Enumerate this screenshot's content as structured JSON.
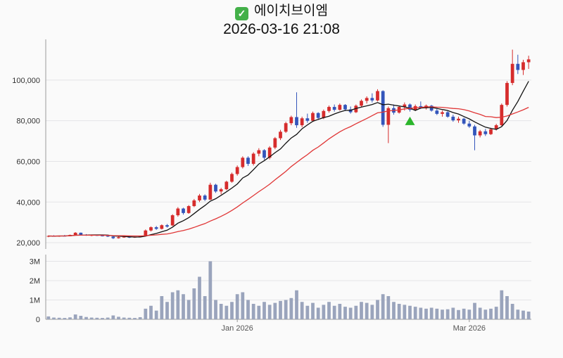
{
  "header": {
    "check_glyph": "✓",
    "title": "에이치브이엠",
    "datetime": "2026-03-16 21:08"
  },
  "colors": {
    "up": "#d62c2c",
    "down": "#3355bb",
    "volume": "#9aa4bc",
    "ma_fast": "#111111",
    "ma_slow": "#e03636",
    "grid": "#e4e4e7",
    "axis": "#999999",
    "checkbox_green": "#43b049"
  },
  "chart_data": {
    "type": "candlestick",
    "title": "에이치브이엠",
    "subtitle": "2026-03-16 21:08",
    "panels": [
      "price",
      "volume"
    ],
    "price_axis": {
      "ticks": [
        20000,
        40000,
        60000,
        80000,
        100000
      ],
      "range": [
        16900,
        119000
      ]
    },
    "volume_axis": {
      "ticks": [
        {
          "v": 0,
          "label": "0"
        },
        {
          "v": 1000000,
          "label": "1M"
        },
        {
          "v": 2000000,
          "label": "2M"
        },
        {
          "v": 3000000,
          "label": "3M"
        }
      ],
      "max": 3200000
    },
    "x_axis_labels": [
      {
        "index": 35,
        "label": "Jan 2026"
      },
      {
        "index": 78,
        "label": "Mar 2026"
      }
    ],
    "moving_averages": [
      {
        "period": 7,
        "color_key": "ma_fast"
      },
      {
        "period": 20,
        "color_key": "ma_slow"
      }
    ],
    "marker": {
      "shape": "triangle-up",
      "index": 67,
      "price": 82000,
      "color": "#2bb52b"
    },
    "columns": [
      "open",
      "high",
      "low",
      "close",
      "volume"
    ],
    "candles": [
      [
        23000,
        23600,
        22700,
        23300,
        150000
      ],
      [
        23300,
        23700,
        23000,
        23200,
        90000
      ],
      [
        23200,
        23500,
        22900,
        23400,
        80000
      ],
      [
        23400,
        23800,
        23100,
        23300,
        70000
      ],
      [
        23300,
        24000,
        23200,
        23800,
        100000
      ],
      [
        23800,
        25200,
        23700,
        24900,
        250000
      ],
      [
        24900,
        25000,
        23600,
        23900,
        180000
      ],
      [
        23900,
        24200,
        23400,
        23600,
        120000
      ],
      [
        23600,
        23900,
        23200,
        23750,
        90000
      ],
      [
        23750,
        24000,
        23300,
        23500,
        80000
      ],
      [
        23500,
        23800,
        23100,
        23400,
        70000
      ],
      [
        23400,
        23600,
        22800,
        23000,
        90000
      ],
      [
        23000,
        23200,
        21800,
        22200,
        200000
      ],
      [
        22200,
        22900,
        22000,
        22700,
        130000
      ],
      [
        22700,
        23100,
        22400,
        22900,
        90000
      ],
      [
        22900,
        23000,
        22300,
        22500,
        80000
      ],
      [
        22500,
        23000,
        22400,
        22900,
        70000
      ],
      [
        22900,
        23400,
        22700,
        23200,
        110000
      ],
      [
        23200,
        26500,
        23100,
        26000,
        550000
      ],
      [
        26000,
        28000,
        25500,
        27600,
        700000
      ],
      [
        27600,
        28200,
        26300,
        26800,
        450000
      ],
      [
        26800,
        29000,
        26500,
        28600,
        1200000
      ],
      [
        28600,
        29200,
        27400,
        27900,
        900000
      ],
      [
        28500,
        34000,
        28200,
        33500,
        1400000
      ],
      [
        33500,
        37500,
        32800,
        36800,
        1500000
      ],
      [
        36800,
        37200,
        33800,
        34600,
        1300000
      ],
      [
        34600,
        38500,
        34200,
        38000,
        1000000
      ],
      [
        38000,
        41500,
        37500,
        40800,
        1600000
      ],
      [
        40800,
        44000,
        40000,
        43200,
        2200000
      ],
      [
        43200,
        43800,
        40500,
        41200,
        1200000
      ],
      [
        41200,
        49500,
        41000,
        48500,
        3000000
      ],
      [
        48500,
        49000,
        44500,
        45200,
        1000000
      ],
      [
        45200,
        47000,
        43800,
        46300,
        800000
      ],
      [
        46300,
        50500,
        45800,
        50000,
        700000
      ],
      [
        50000,
        54500,
        49500,
        53800,
        900000
      ],
      [
        53800,
        58000,
        53000,
        57200,
        1300000
      ],
      [
        57200,
        62500,
        56500,
        61800,
        1400000
      ],
      [
        61800,
        62500,
        57800,
        58800,
        1000000
      ],
      [
        58800,
        64500,
        58000,
        63800,
        800000
      ],
      [
        63800,
        66500,
        62500,
        65500,
        700000
      ],
      [
        65500,
        66000,
        60800,
        61800,
        900000
      ],
      [
        61800,
        67500,
        61000,
        66800,
        750000
      ],
      [
        66800,
        72000,
        66000,
        71400,
        850000
      ],
      [
        71400,
        75500,
        70500,
        74600,
        950000
      ],
      [
        74600,
        79500,
        74000,
        78800,
        1000000
      ],
      [
        78800,
        82500,
        77800,
        81800,
        1100000
      ],
      [
        81800,
        94000,
        76500,
        77800,
        1500000
      ],
      [
        77800,
        82000,
        76800,
        81200,
        900000
      ],
      [
        81200,
        83500,
        79000,
        80000,
        700000
      ],
      [
        80000,
        84500,
        79500,
        83800,
        850000
      ],
      [
        83800,
        84200,
        80500,
        81400,
        600000
      ],
      [
        81400,
        85500,
        80800,
        84800,
        750000
      ],
      [
        84800,
        87500,
        84000,
        86800,
        900000
      ],
      [
        86800,
        88000,
        84500,
        85400,
        700000
      ],
      [
        85400,
        88500,
        85000,
        87800,
        800000
      ],
      [
        87800,
        88200,
        84800,
        85600,
        650000
      ],
      [
        85600,
        87000,
        83500,
        84200,
        600000
      ],
      [
        84200,
        88000,
        83800,
        87400,
        700000
      ],
      [
        87400,
        90500,
        86800,
        89800,
        900000
      ],
      [
        89800,
        92000,
        88500,
        91200,
        850000
      ],
      [
        91200,
        93500,
        89000,
        90000,
        750000
      ],
      [
        90000,
        95500,
        89500,
        94600,
        1000000
      ],
      [
        94600,
        95000,
        77000,
        78000,
        1300000
      ],
      [
        78000,
        87000,
        69000,
        86200,
        1200000
      ],
      [
        86200,
        88000,
        83000,
        84000,
        900000
      ],
      [
        84000,
        87500,
        83500,
        86800,
        800000
      ],
      [
        86800,
        89000,
        85000,
        88000,
        750000
      ],
      [
        88000,
        88500,
        84500,
        85400,
        700000
      ],
      [
        85400,
        88000,
        84800,
        87200,
        650000
      ],
      [
        87200,
        89500,
        85800,
        86200,
        600000
      ],
      [
        86200,
        88000,
        85500,
        87400,
        550000
      ],
      [
        87400,
        87800,
        84500,
        85000,
        600000
      ],
      [
        85000,
        86000,
        82800,
        83400,
        550000
      ],
      [
        83400,
        85000,
        82000,
        84200,
        500000
      ],
      [
        84200,
        84800,
        81500,
        82000,
        520000
      ],
      [
        82000,
        83000,
        79500,
        80200,
        600000
      ],
      [
        80200,
        82000,
        79000,
        81000,
        480000
      ],
      [
        81000,
        81500,
        78000,
        78600,
        550000
      ],
      [
        78600,
        80000,
        76500,
        77200,
        500000
      ],
      [
        77200,
        78000,
        65500,
        72800,
        850000
      ],
      [
        72800,
        75500,
        71800,
        74800,
        600000
      ],
      [
        74800,
        76000,
        72500,
        73400,
        500000
      ],
      [
        73400,
        76500,
        73000,
        75800,
        550000
      ],
      [
        75800,
        78500,
        75200,
        77800,
        650000
      ],
      [
        77800,
        88500,
        77500,
        87800,
        1500000
      ],
      [
        87800,
        99500,
        87000,
        98600,
        1200000
      ],
      [
        98600,
        115000,
        97500,
        108000,
        800000
      ],
      [
        108000,
        112500,
        103000,
        105000,
        500000
      ],
      [
        105000,
        110000,
        102500,
        108800,
        450000
      ],
      [
        108800,
        112000,
        105500,
        110200,
        400000
      ]
    ]
  }
}
